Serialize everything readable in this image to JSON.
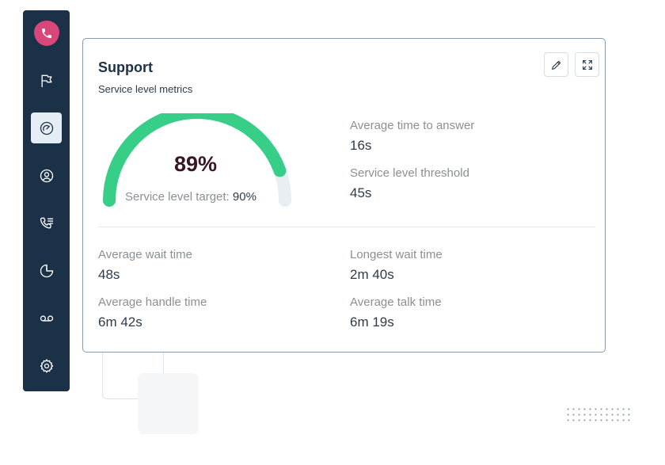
{
  "app": {
    "accent": "#d9477a",
    "sidebar_bg": "#1b3147"
  },
  "sidebar": {
    "items": [
      {
        "icon": "flag-icon"
      },
      {
        "icon": "gauge-icon",
        "active": true
      },
      {
        "icon": "user-circle-icon"
      },
      {
        "icon": "phone-list-icon"
      },
      {
        "icon": "pie-chart-icon"
      },
      {
        "icon": "voicemail-icon"
      },
      {
        "icon": "gear-icon"
      }
    ]
  },
  "card": {
    "title": "Support",
    "subtitle": "Service level metrics",
    "gauge": {
      "value": 0.89,
      "value_text": "89%",
      "target_label": "Service level target:",
      "target_value": "90%",
      "color": "#37cf87"
    },
    "metrics_right": [
      {
        "label": "Average time to answer",
        "value": "16s"
      },
      {
        "label": "Service level threshold",
        "value": "45s"
      }
    ],
    "metrics_bottom": [
      {
        "label": "Average wait time",
        "value": "48s"
      },
      {
        "label": "Longest wait time",
        "value": "2m 40s"
      },
      {
        "label": "Average handle time",
        "value": "6m 42s"
      },
      {
        "label": "Average talk time",
        "value": "6m 19s"
      }
    ]
  }
}
